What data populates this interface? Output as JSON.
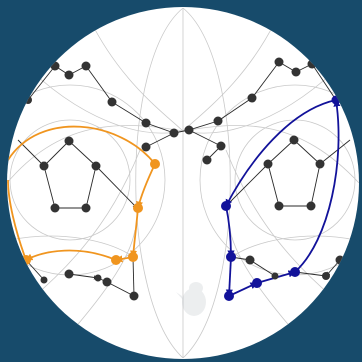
{
  "background_color": "#174b6b",
  "disk_color": "#ffffff",
  "grid_color": "#c9c9c9",
  "edge_color": "#2a2a2a",
  "node_color": "#333333",
  "highlight_orange": "#f0951f",
  "highlight_blue": "#12129a",
  "icon": "mascot-silhouette-icon"
}
